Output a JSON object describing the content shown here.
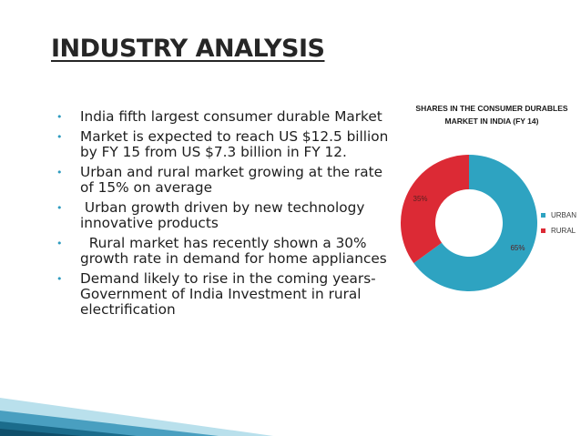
{
  "slide": {
    "title": "INDUSTRY ANALYSIS",
    "bullet_symbol": "•",
    "bullets": [
      "India fifth largest consumer durable Market",
      "Market is expected to reach US $12.5 billion by FY 15 from US $7.3 billion in FY 12.",
      "Urban and rural market growing at the rate of 15% on average",
      " Urban growth driven by new technology innovative products",
      "  Rural market has recently shown a 30% growth rate in demand for home appliances",
      "Demand likely to rise in the coming years- Government of India Investment in rural electrification"
    ]
  },
  "chart_data": {
    "type": "pie",
    "variant": "donut",
    "title": "SHARES IN THE CONSUMER DURABLES MARKET IN INDIA (FY 14)",
    "categories": [
      "URBAN",
      "RURAL"
    ],
    "values": [
      65,
      35
    ],
    "data_labels": [
      "65%",
      "35%"
    ],
    "colors": [
      "#2ea3c1",
      "#dc2a35"
    ],
    "legend_position": "right"
  },
  "colors": {
    "title_text": "#262626",
    "bullet_marker": "#2e9bbf",
    "corner_accent": "#1b6c8c"
  }
}
